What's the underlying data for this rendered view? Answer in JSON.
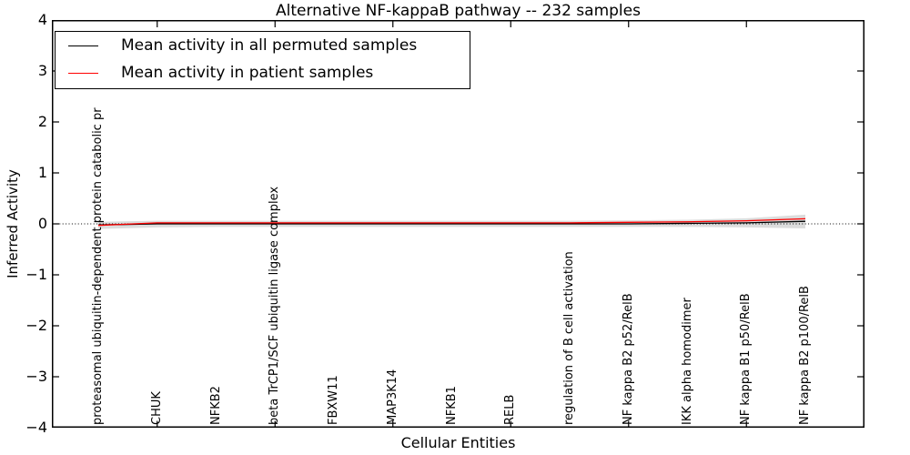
{
  "figure": {
    "title": "Alternative NF-kappaB pathway -- 232 samples",
    "xlabel": "Cellular Entities",
    "ylabel": "Inferred Activity"
  },
  "chart_data": {
    "type": "line",
    "title": "Alternative NF-kappaB pathway -- 232 samples",
    "xlabel": "Cellular Entities",
    "ylabel": "Inferred Activity",
    "ylim": [
      -4,
      4
    ],
    "yticks": [
      {
        "value": 4,
        "label": "4"
      },
      {
        "value": 3,
        "label": "3"
      },
      {
        "value": 2,
        "label": "2"
      },
      {
        "value": 1,
        "label": "1"
      },
      {
        "value": 0,
        "label": "0"
      },
      {
        "value": -1,
        "label": "−1"
      },
      {
        "value": -2,
        "label": "−2"
      },
      {
        "value": -3,
        "label": "−3"
      },
      {
        "value": -4,
        "label": "−4"
      }
    ],
    "categories": [
      "proteasomal ubiquitin-dependent protein catabolic pr",
      "CHUK",
      "NFKB2",
      "beta TrCP1/SCF ubiquitin ligase complex",
      "FBXW11",
      "MAP3K14",
      "NFKB1",
      "RELB",
      "regulation of B cell activation",
      "NF kappa B2 p52/RelB",
      "IKK alpha homodimer",
      "NF kappa B1 p50/RelB",
      "NF kappa B2 p100/RelB"
    ],
    "series": [
      {
        "name": "Mean activity in all permuted samples",
        "color": "#000000",
        "values": [
          -0.02,
          0.0,
          0.0,
          0.0,
          0.0,
          0.0,
          0.0,
          0.0,
          0.0,
          0.0,
          0.01,
          0.02,
          0.05
        ]
      },
      {
        "name": "Mean activity in patient samples",
        "color": "#ff0000",
        "values": [
          -0.03,
          0.02,
          0.02,
          0.02,
          0.02,
          0.02,
          0.02,
          0.02,
          0.02,
          0.03,
          0.04,
          0.06,
          0.1
        ]
      }
    ],
    "band": {
      "color": "#dcdcdc",
      "upper": [
        0.04,
        0.06,
        0.06,
        0.06,
        0.06,
        0.06,
        0.06,
        0.06,
        0.06,
        0.07,
        0.08,
        0.11,
        0.18
      ],
      "lower": [
        -0.1,
        -0.07,
        -0.06,
        -0.06,
        -0.06,
        -0.06,
        -0.06,
        -0.06,
        -0.06,
        -0.06,
        -0.06,
        -0.07,
        -0.09
      ]
    },
    "zero_line": {
      "value": 0,
      "style": "dotted",
      "color": "#000000"
    },
    "x_top_tick_indices": [
      1,
      3,
      5,
      7,
      9,
      11
    ],
    "grid": false,
    "legend_position": "upper left"
  }
}
